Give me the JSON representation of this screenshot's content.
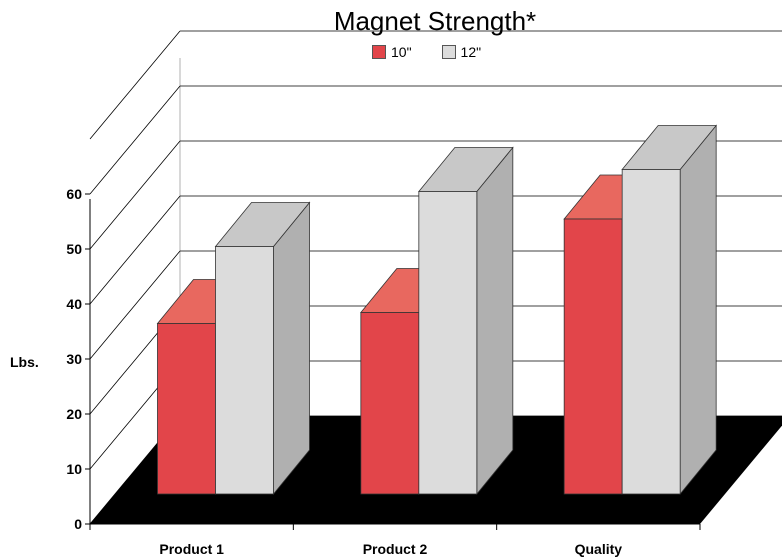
{
  "chart_data": {
    "type": "bar",
    "title": "Magnet Strength*",
    "ylabel": "Lbs.",
    "xlabel": "",
    "categories": [
      "Product 1",
      "Product 2",
      "Quality"
    ],
    "series": [
      {
        "name": "10\"",
        "values": [
          31,
          33,
          50
        ]
      },
      {
        "name": "12\"",
        "values": [
          45,
          55,
          59
        ]
      }
    ],
    "ylim": [
      0,
      60
    ],
    "yticks": [
      "0",
      "10",
      "20",
      "30",
      "40",
      "50",
      "60"
    ],
    "grid": true,
    "legend": "top-center",
    "colors": {
      "s0_front": "#e2454a",
      "s0_top": "#e8685f",
      "s0_side": "#c9363c",
      "s1_front": "#dcdcdc",
      "s1_top": "#c8c8c8",
      "s1_side": "#b0b0b0",
      "floor": "#000000",
      "grid": "#000000"
    }
  }
}
